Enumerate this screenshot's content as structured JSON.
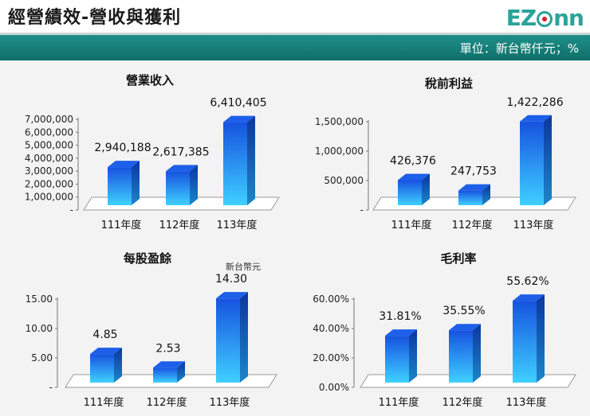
{
  "header": {
    "title": "經營績效-營收與獲利",
    "logo_text": "EZconn",
    "unit": "單位：新台幣仟元；%"
  },
  "colors": {
    "bar_light": "#3fd0ff",
    "bar_dark": "#0a4fd6",
    "bar_top": "#1d5fe8",
    "bar_side": "#0b3aa0",
    "band": "#137b75"
  },
  "chart_data": [
    {
      "type": "bar",
      "title": "營業收入",
      "categories": [
        "111年度",
        "112年度",
        "113年度"
      ],
      "values": [
        2940188,
        2617385,
        6410405
      ],
      "labels": [
        "2,940,188",
        "2,617,385",
        "6,410,405"
      ],
      "ylim": [
        0,
        7000000
      ],
      "yticks": [
        "-",
        "1,000,000",
        "2,000,000",
        "3,000,000",
        "4,000,000",
        "5,000,000",
        "6,000,000",
        "7,000,000"
      ],
      "note": ""
    },
    {
      "type": "bar",
      "title": "稅前利益",
      "categories": [
        "111年度",
        "112年度",
        "113年度"
      ],
      "values": [
        426376,
        247753,
        1422286
      ],
      "labels": [
        "426,376",
        "247,753",
        "1,422,286"
      ],
      "ylim": [
        0,
        1500000
      ],
      "yticks": [
        "-",
        "500,000",
        "1,000,000",
        "1,500,000"
      ],
      "note": ""
    },
    {
      "type": "bar",
      "title": "每股盈餘",
      "categories": [
        "111年度",
        "112年度",
        "113年度"
      ],
      "values": [
        4.85,
        2.53,
        14.3
      ],
      "labels": [
        "4.85",
        "2.53",
        "14.30"
      ],
      "ylim": [
        0,
        15
      ],
      "yticks": [
        "-",
        "5.00",
        "10.00",
        "15.00"
      ],
      "note": "新台幣元"
    },
    {
      "type": "bar",
      "title": "毛利率",
      "categories": [
        "111年度",
        "112年度",
        "113年度"
      ],
      "values": [
        31.81,
        35.55,
        55.62
      ],
      "labels": [
        "31.81%",
        "35.55%",
        "55.62%"
      ],
      "ylim": [
        0,
        60
      ],
      "yticks": [
        "0.00%",
        "20.00%",
        "40.00%",
        "60.00%"
      ],
      "note": ""
    }
  ]
}
